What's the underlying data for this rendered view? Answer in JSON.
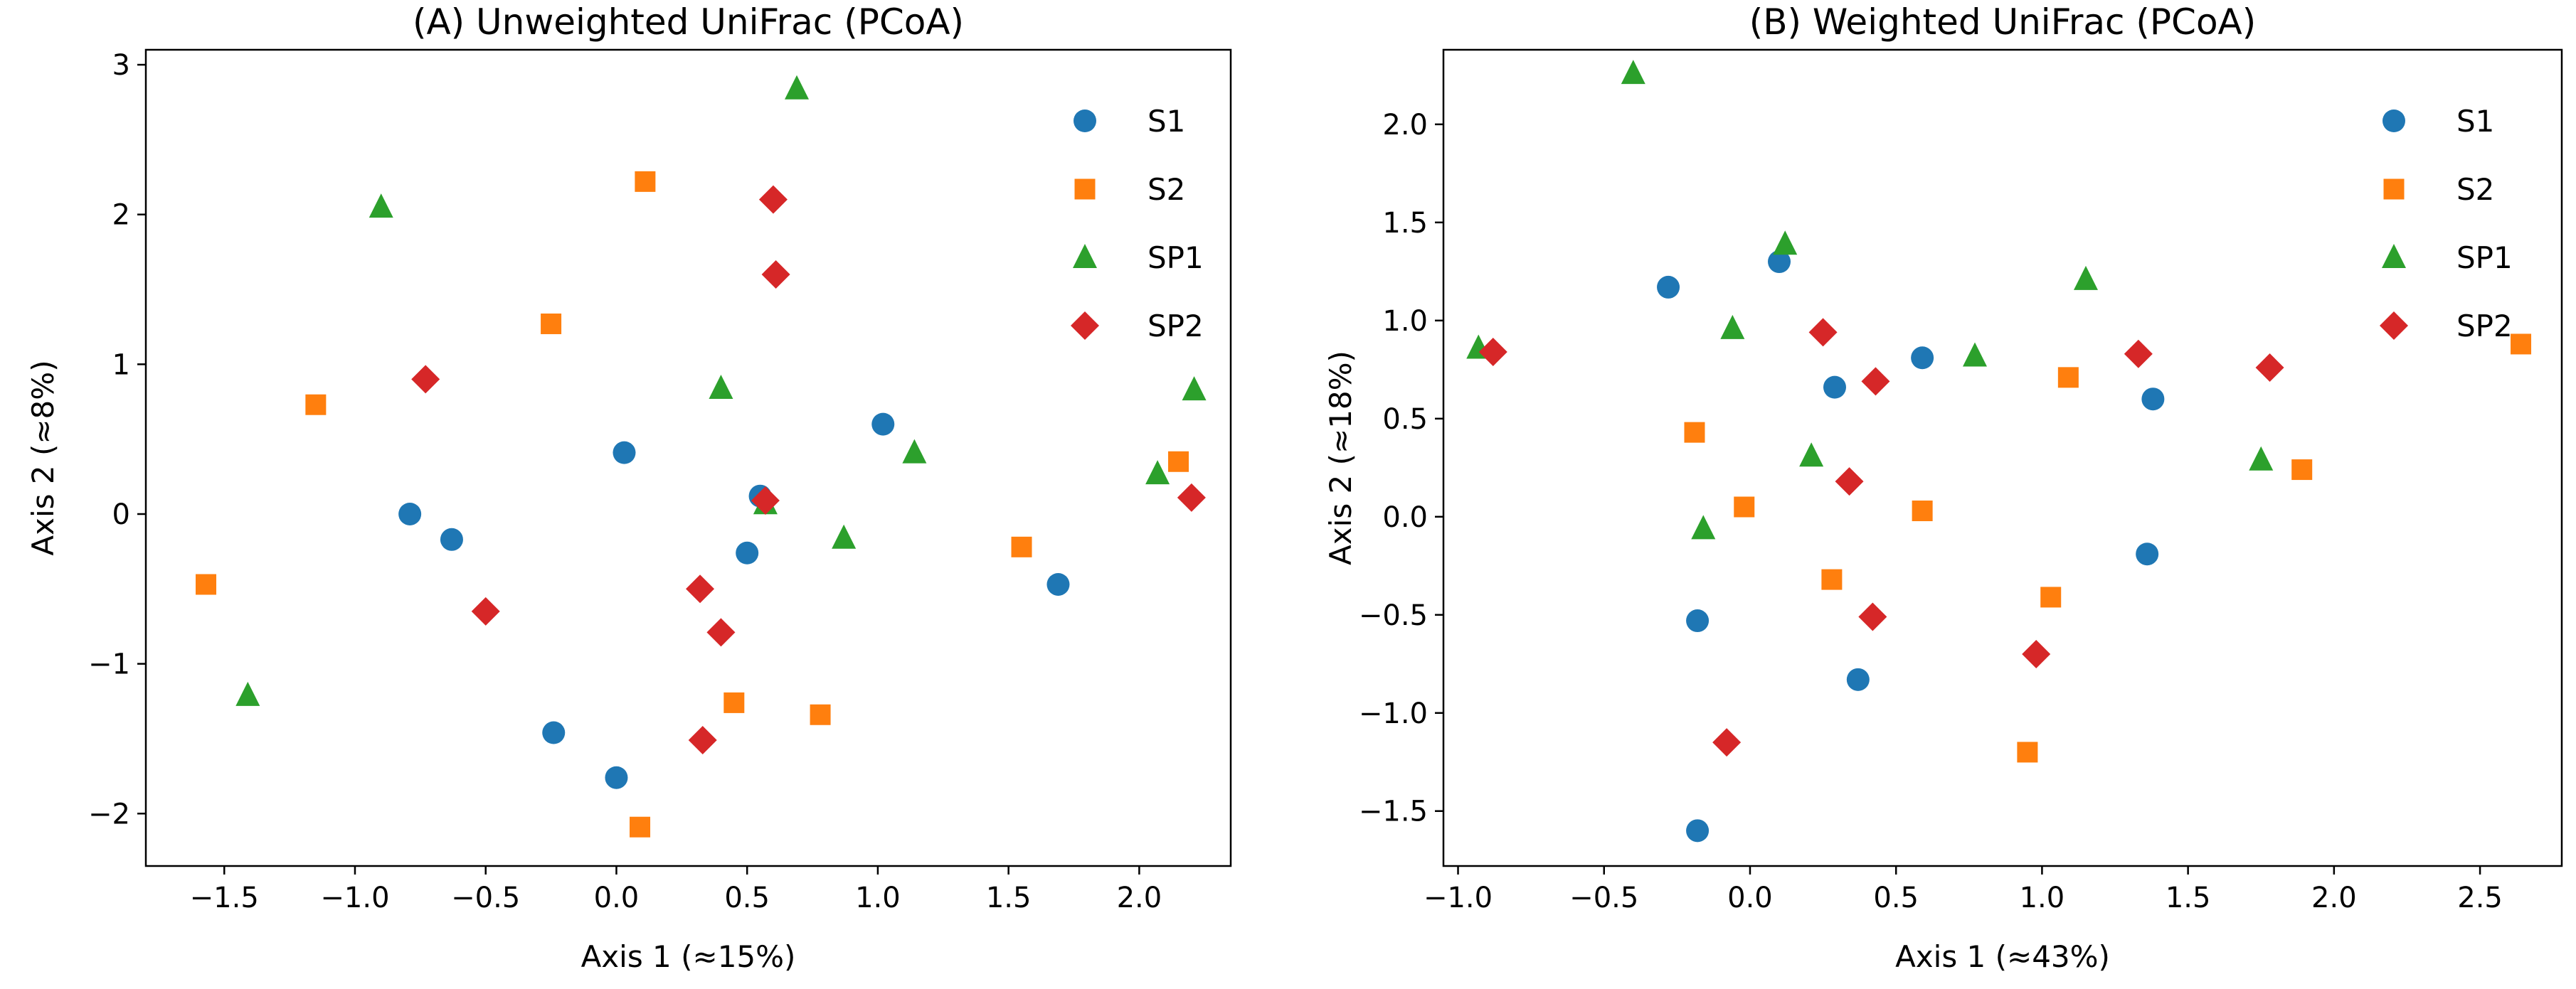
{
  "chart_data": [
    {
      "type": "scatter",
      "title": "(A) Unweighted UniFrac (PCoA)",
      "xlabel": "Axis 1 (≈15%)",
      "ylabel": "Axis 2 (≈8%)",
      "xlim": [
        -1.8,
        2.35
      ],
      "ylim": [
        -2.35,
        3.1
      ],
      "xticks": [
        -1.5,
        -1.0,
        -0.5,
        0.0,
        0.5,
        1.0,
        1.5,
        2.0
      ],
      "xtick_labels": [
        "−1.5",
        "−1.0",
        "−0.5",
        "0.0",
        "0.5",
        "1.0",
        "1.5",
        "2.0"
      ],
      "yticks": [
        -2,
        -1,
        0,
        1,
        2,
        3
      ],
      "ytick_labels": [
        "−2",
        "−1",
        "0",
        "1",
        "2",
        "3"
      ],
      "grid": false,
      "legend_position": "top-right",
      "series": [
        {
          "name": "S1",
          "marker": "circle",
          "color": "#1f77b4",
          "points": [
            [
              -0.79,
              0.0
            ],
            [
              -0.63,
              -0.17
            ],
            [
              0.03,
              0.41
            ],
            [
              1.02,
              0.6
            ],
            [
              0.55,
              0.12
            ],
            [
              0.5,
              -0.26
            ],
            [
              1.69,
              -0.47
            ],
            [
              -0.24,
              -1.46
            ],
            [
              0.0,
              -1.76
            ]
          ]
        },
        {
          "name": "S2",
          "marker": "square",
          "color": "#ff7f0e",
          "points": [
            [
              0.11,
              2.22
            ],
            [
              -0.25,
              1.27
            ],
            [
              -1.15,
              0.73
            ],
            [
              -1.57,
              -0.47
            ],
            [
              2.15,
              0.35
            ],
            [
              1.55,
              -0.22
            ],
            [
              0.45,
              -1.26
            ],
            [
              0.78,
              -1.34
            ],
            [
              0.09,
              -2.09
            ]
          ]
        },
        {
          "name": "SP1",
          "marker": "triangle",
          "color": "#2ca02c",
          "points": [
            [
              0.69,
              2.84
            ],
            [
              -0.9,
              2.05
            ],
            [
              0.4,
              0.84
            ],
            [
              2.21,
              0.83
            ],
            [
              1.14,
              0.41
            ],
            [
              2.07,
              0.27
            ],
            [
              0.57,
              0.07
            ],
            [
              0.87,
              -0.16
            ],
            [
              -1.41,
              -1.21
            ]
          ]
        },
        {
          "name": "SP2",
          "marker": "diamond",
          "color": "#d62728",
          "points": [
            [
              0.6,
              2.1
            ],
            [
              0.61,
              1.6
            ],
            [
              -0.73,
              0.9
            ],
            [
              0.57,
              0.09
            ],
            [
              2.2,
              0.11
            ],
            [
              0.32,
              -0.5
            ],
            [
              -0.5,
              -0.65
            ],
            [
              0.4,
              -0.79
            ],
            [
              0.33,
              -1.51
            ]
          ]
        }
      ]
    },
    {
      "type": "scatter",
      "title": "(B) Weighted UniFrac (PCoA)",
      "xlabel": "Axis 1 (≈43%)",
      "ylabel": "Axis 2 (≈18%)",
      "xlim": [
        -1.05,
        2.78
      ],
      "ylim": [
        -1.78,
        2.38
      ],
      "xticks": [
        -1.0,
        -0.5,
        0.0,
        0.5,
        1.0,
        1.5,
        2.0,
        2.5
      ],
      "xtick_labels": [
        "−1.0",
        "−0.5",
        "0.0",
        "0.5",
        "1.0",
        "1.5",
        "2.0",
        "2.5"
      ],
      "yticks": [
        -1.5,
        -1.0,
        -0.5,
        0.0,
        0.5,
        1.0,
        1.5,
        2.0
      ],
      "ytick_labels": [
        "−1.5",
        "−1.0",
        "−0.5",
        "0.0",
        "0.5",
        "1.0",
        "1.5",
        "2.0"
      ],
      "grid": false,
      "legend_position": "top-right",
      "series": [
        {
          "name": "S1",
          "marker": "circle",
          "color": "#1f77b4",
          "points": [
            [
              -0.28,
              1.17
            ],
            [
              0.1,
              1.3
            ],
            [
              0.29,
              0.66
            ],
            [
              0.59,
              0.81
            ],
            [
              1.38,
              0.6
            ],
            [
              1.36,
              -0.19
            ],
            [
              -0.18,
              -0.53
            ],
            [
              0.37,
              -0.83
            ],
            [
              -0.18,
              -1.6
            ]
          ]
        },
        {
          "name": "S2",
          "marker": "square",
          "color": "#ff7f0e",
          "points": [
            [
              -0.19,
              0.43
            ],
            [
              -0.02,
              0.05
            ],
            [
              0.59,
              0.03
            ],
            [
              1.09,
              0.71
            ],
            [
              2.64,
              0.88
            ],
            [
              1.89,
              0.24
            ],
            [
              0.28,
              -0.32
            ],
            [
              1.03,
              -0.41
            ],
            [
              0.95,
              -1.2
            ]
          ]
        },
        {
          "name": "SP1",
          "marker": "triangle",
          "color": "#2ca02c",
          "points": [
            [
              -0.4,
              2.26
            ],
            [
              -0.93,
              0.86
            ],
            [
              -0.06,
              0.96
            ],
            [
              0.12,
              1.39
            ],
            [
              0.77,
              0.82
            ],
            [
              1.15,
              1.21
            ],
            [
              0.21,
              0.31
            ],
            [
              -0.16,
              -0.06
            ],
            [
              1.75,
              0.29
            ]
          ]
        },
        {
          "name": "SP2",
          "marker": "diamond",
          "color": "#d62728",
          "points": [
            [
              -0.88,
              0.84
            ],
            [
              0.25,
              0.94
            ],
            [
              0.43,
              0.69
            ],
            [
              1.33,
              0.83
            ],
            [
              1.78,
              0.76
            ],
            [
              0.34,
              0.18
            ],
            [
              0.42,
              -0.51
            ],
            [
              0.98,
              -0.7
            ],
            [
              -0.08,
              -1.15
            ]
          ]
        }
      ]
    }
  ]
}
